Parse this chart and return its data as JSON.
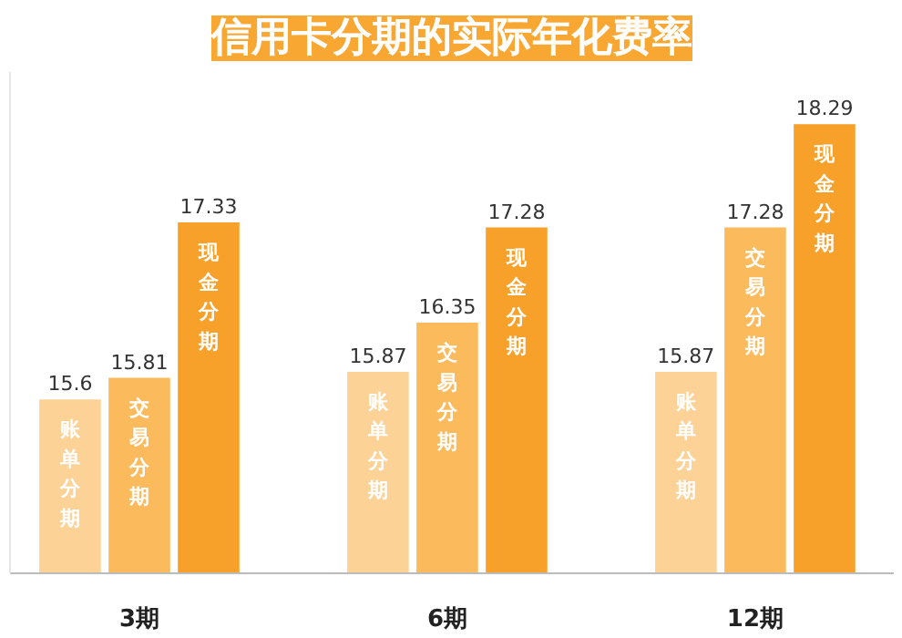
{
  "chart_data": {
    "type": "bar",
    "title": "信用卡分期的实际年化费率",
    "categories": [
      "3期",
      "6期",
      "12期"
    ],
    "series": [
      {
        "name": "账单分期",
        "color": "#fdd296",
        "values": [
          15.6,
          15.87,
          15.87
        ]
      },
      {
        "name": "交易分期",
        "color": "#fbbb5c",
        "values": [
          15.81,
          16.35,
          17.28
        ]
      },
      {
        "name": "现金分期",
        "color": "#f7a12a",
        "values": [
          17.33,
          17.28,
          18.29
        ]
      }
    ],
    "ylim": [
      13.9,
      18.8
    ],
    "data_labels": true,
    "grid": false,
    "tick_labels": "x"
  }
}
